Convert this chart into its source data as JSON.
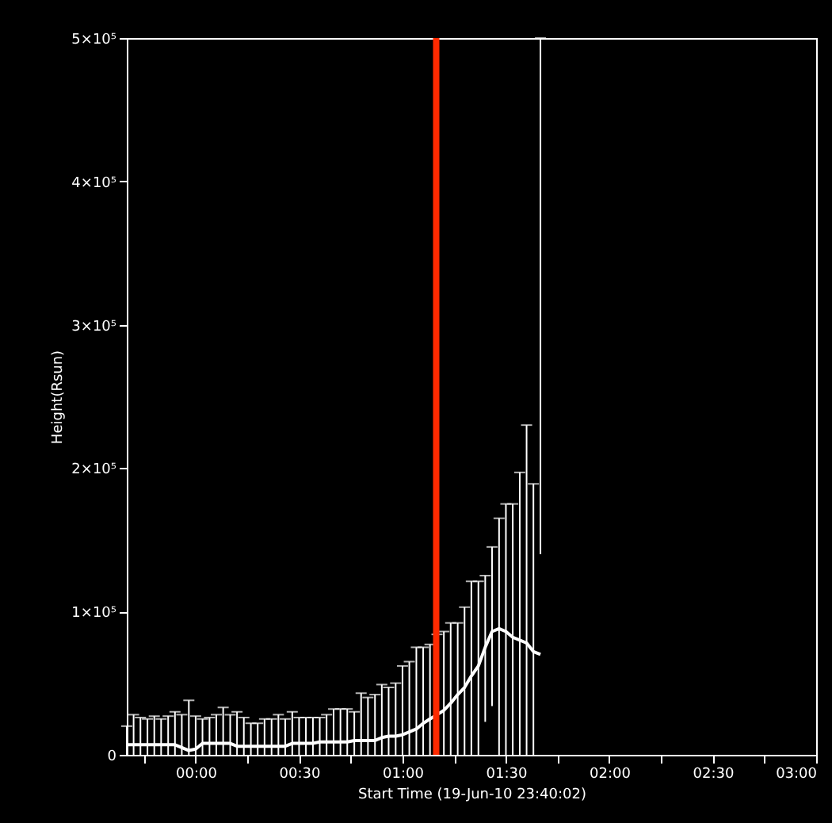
{
  "chart_data": {
    "type": "line",
    "xlabel": "Start Time (19-Jun-10 23:40:02)",
    "ylabel": "Height(Rsun)",
    "x": [
      -0.333,
      -0.3,
      -0.267,
      -0.233,
      -0.2,
      -0.167,
      -0.133,
      -0.1,
      -0.067,
      -0.033,
      0,
      0.033,
      0.067,
      0.1,
      0.133,
      0.167,
      0.2,
      0.233,
      0.267,
      0.3,
      0.333,
      0.367,
      0.4,
      0.433,
      0.467,
      0.5,
      0.533,
      0.567,
      0.6,
      0.633,
      0.667,
      0.7,
      0.733,
      0.767,
      0.8,
      0.833,
      0.867,
      0.9,
      0.933,
      0.967,
      1.0,
      1.033,
      1.067,
      1.1,
      1.133,
      1.167,
      1.2,
      1.233,
      1.267,
      1.3,
      1.333,
      1.367,
      1.4,
      1.433,
      1.467,
      1.5,
      1.533,
      1.567,
      1.6,
      1.633,
      1.667
    ],
    "series": [
      {
        "color": "#ffffff",
        "values": [
          7000,
          7000,
          7000,
          7000,
          7000,
          7000,
          7000,
          7000,
          5000,
          3000,
          4000,
          8000,
          8000,
          8000,
          8000,
          8000,
          6000,
          6000,
          6000,
          6000,
          6000,
          6000,
          6000,
          6000,
          8000,
          8000,
          8000,
          8000,
          9000,
          9000,
          9000,
          9000,
          9000,
          10000,
          10000,
          10000,
          10000,
          12000,
          13000,
          13000,
          14000,
          16000,
          18000,
          22000,
          25000,
          28000,
          31000,
          36000,
          42000,
          47000,
          55000,
          62000,
          75000,
          86000,
          88000,
          86000,
          82000,
          80000,
          78000,
          72000,
          70000
        ],
        "errors": [
          [
            0,
            20000
          ],
          [
            0,
            28000
          ],
          [
            0,
            26000
          ],
          [
            0,
            25000
          ],
          [
            0,
            27000
          ],
          [
            0,
            25000
          ],
          [
            0,
            27000
          ],
          [
            0,
            30000
          ],
          [
            0,
            28000
          ],
          [
            0,
            38000
          ],
          [
            0,
            27000
          ],
          [
            0,
            25000
          ],
          [
            0,
            26000
          ],
          [
            0,
            28000
          ],
          [
            0,
            33000
          ],
          [
            0,
            28000
          ],
          [
            0,
            30000
          ],
          [
            0,
            26000
          ],
          [
            0,
            22000
          ],
          [
            0,
            22000
          ],
          [
            0,
            25000
          ],
          [
            0,
            25000
          ],
          [
            0,
            28000
          ],
          [
            0,
            25000
          ],
          [
            0,
            30000
          ],
          [
            0,
            26000
          ],
          [
            0,
            26000
          ],
          [
            0,
            26000
          ],
          [
            0,
            26000
          ],
          [
            0,
            28000
          ],
          [
            0,
            32000
          ],
          [
            0,
            32000
          ],
          [
            0,
            32000
          ],
          [
            0,
            30000
          ],
          [
            0,
            43000
          ],
          [
            0,
            40000
          ],
          [
            0,
            42000
          ],
          [
            0,
            49000
          ],
          [
            0,
            47000
          ],
          [
            0,
            50000
          ],
          [
            0,
            62000
          ],
          [
            0,
            65000
          ],
          [
            0,
            75000
          ],
          [
            0,
            75000
          ],
          [
            0,
            77000
          ],
          [
            0,
            84000
          ],
          [
            0,
            86000
          ],
          [
            0,
            92000
          ],
          [
            0,
            92000
          ],
          [
            0,
            103000
          ],
          [
            0,
            121000
          ],
          [
            0,
            121000
          ],
          [
            23000,
            125000
          ],
          [
            34000,
            145000
          ],
          [
            0,
            165000
          ],
          [
            0,
            175000
          ],
          [
            0,
            175000
          ],
          [
            0,
            197000
          ],
          [
            0,
            230000
          ],
          [
            0,
            189000
          ],
          [
            140000,
            500000
          ]
        ]
      }
    ],
    "xlim": [
      -0.333,
      3.0
    ],
    "xticks": [
      {
        "value": -0.25,
        "label": null
      },
      {
        "value": 0,
        "label": "00:00"
      },
      {
        "value": 0.25,
        "label": null
      },
      {
        "value": 0.5,
        "label": "00:30"
      },
      {
        "value": 0.75,
        "label": null
      },
      {
        "value": 1.0,
        "label": "01:00"
      },
      {
        "value": 1.25,
        "label": null
      },
      {
        "value": 1.5,
        "label": "01:30"
      },
      {
        "value": 1.75,
        "label": null
      },
      {
        "value": 2.0,
        "label": "02:00"
      },
      {
        "value": 2.25,
        "label": null
      },
      {
        "value": 2.5,
        "label": "02:30"
      },
      {
        "value": 2.75,
        "label": null
      },
      {
        "value": 3.0,
        "label": "03:00"
      }
    ],
    "ylim": [
      0,
      500000
    ],
    "yticks": [
      {
        "value": 0,
        "label": "0"
      },
      {
        "value": 100000,
        "label": "1×10⁵"
      },
      {
        "value": 200000,
        "label": "2×10⁵"
      },
      {
        "value": 300000,
        "label": "3×10⁵"
      },
      {
        "value": 400000,
        "label": "4×10⁵"
      },
      {
        "value": 500000,
        "label": "5×10⁵"
      }
    ],
    "ref_lines": [
      {
        "axis": "x",
        "value": 1.163,
        "color": "#ff2a00"
      }
    ]
  }
}
